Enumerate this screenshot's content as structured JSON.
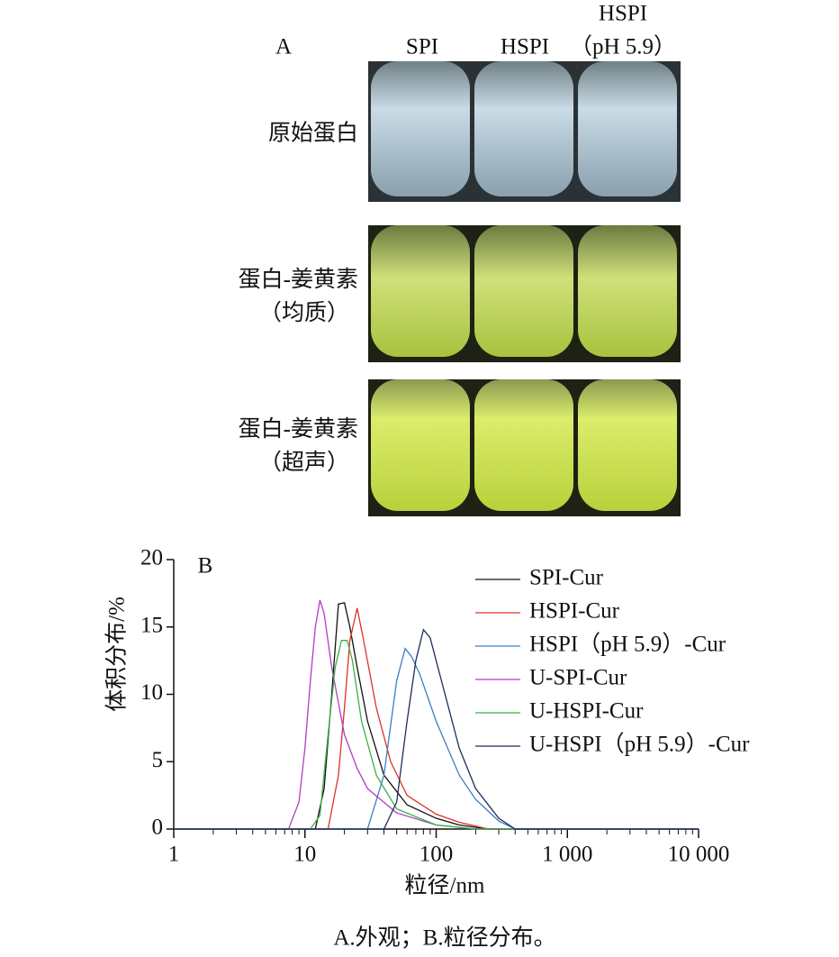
{
  "panel_a": {
    "label": "A",
    "columns": [
      [
        "SPI"
      ],
      [
        "HSPI"
      ],
      [
        "HSPI",
        "（pH 5.9）"
      ]
    ],
    "rows": [
      [
        "原始蛋白"
      ],
      [
        "蛋白-姜黄素",
        "（均质）"
      ],
      [
        "蛋白-姜黄素",
        "（超声）"
      ]
    ]
  },
  "chart_data": {
    "type": "line",
    "panel_label": "B",
    "xlabel": "粒径/nm",
    "ylabel": "体积分布/%",
    "xscale": "log",
    "xlim": [
      1,
      10000
    ],
    "ylim": [
      0,
      20
    ],
    "xticks": [
      1,
      10,
      100,
      {
        "value": 1000,
        "label": "1 000"
      },
      {
        "value": 10000,
        "label": "10 000"
      }
    ],
    "xticks_minor": [
      2,
      3,
      4,
      5,
      6,
      7,
      8,
      9,
      20,
      30,
      40,
      50,
      60,
      70,
      80,
      90,
      200,
      300,
      400,
      500,
      600,
      700,
      800,
      900,
      2000,
      3000,
      4000,
      5000,
      6000,
      7000,
      8000,
      9000
    ],
    "yticks": [
      0,
      5,
      10,
      15,
      20
    ],
    "legend": "upper right",
    "series": [
      {
        "name": "SPI-Cur",
        "color": "#111111",
        "x": [
          1,
          12,
          14,
          16,
          18,
          20,
          22,
          25,
          30,
          40,
          60,
          100,
          150,
          250,
          10000
        ],
        "values": [
          0,
          0,
          3,
          10,
          16.7,
          16.8,
          15,
          12,
          8,
          4,
          1.8,
          0.8,
          0.3,
          0,
          0
        ]
      },
      {
        "name": "HSPI-Cur",
        "color": "#e0302a",
        "x": [
          1,
          15,
          18,
          20,
          22,
          25,
          28,
          35,
          45,
          60,
          100,
          150,
          250,
          10000
        ],
        "values": [
          0,
          0,
          4,
          9,
          14,
          16.4,
          14,
          9,
          5,
          2.5,
          1.1,
          0.5,
          0,
          0
        ]
      },
      {
        "name": "HSPI（pH 5.9）-Cur",
        "color": "#3a7fc1",
        "x": [
          1,
          30,
          40,
          50,
          58,
          65,
          75,
          100,
          150,
          200,
          300,
          400,
          10000
        ],
        "values": [
          0,
          0,
          4,
          11,
          13.4,
          12.8,
          11.5,
          8,
          4,
          2.2,
          0.6,
          0,
          0
        ]
      },
      {
        "name": "U-SPI-Cur",
        "color": "#b03ec0",
        "x": [
          1,
          7.5,
          9,
          10,
          11,
          12,
          13,
          14,
          16,
          20,
          25,
          30,
          50,
          100,
          200,
          10000
        ],
        "values": [
          0,
          0,
          2,
          6,
          11,
          15,
          17,
          16,
          12,
          7,
          4.5,
          3,
          1.2,
          0.3,
          0,
          0
        ]
      },
      {
        "name": "U-HSPI-Cur",
        "color": "#3cb043",
        "x": [
          1,
          11,
          13,
          15,
          17,
          19,
          21,
          23,
          27,
          35,
          50,
          100,
          200,
          10000
        ],
        "values": [
          0,
          0,
          1,
          7,
          12,
          14,
          14,
          12.5,
          8,
          4,
          1.5,
          0.3,
          0,
          0
        ]
      },
      {
        "name": "U-HSPI（pH 5.9）-Cur",
        "color": "#1c2d5e",
        "x": [
          1,
          40,
          50,
          60,
          70,
          80,
          90,
          100,
          150,
          200,
          300,
          400,
          10000
        ],
        "values": [
          0,
          0,
          2,
          8,
          12.5,
          14.8,
          14.2,
          12.5,
          6,
          3,
          0.8,
          0,
          0
        ]
      }
    ]
  },
  "caption": "A.外观；B.粒径分布。"
}
